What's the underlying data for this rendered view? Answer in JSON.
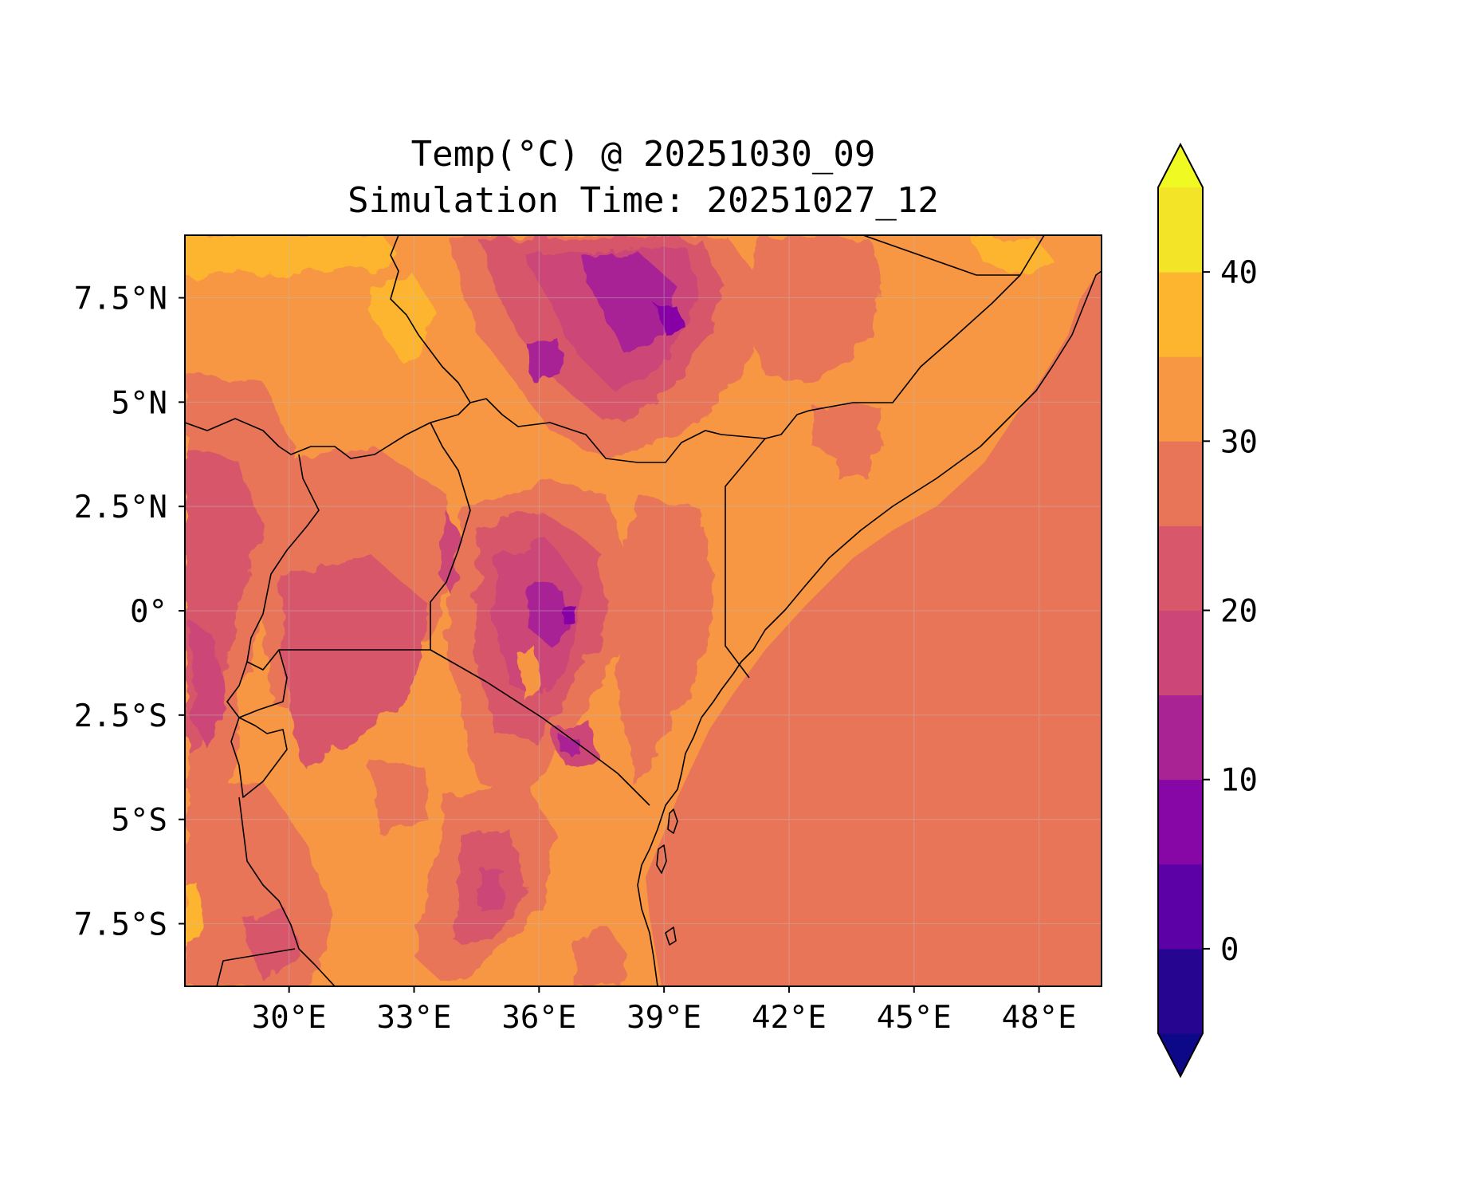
{
  "figure": {
    "title_line1": "Temp(°C) @ 20251030_09",
    "title_line2": "Simulation Time: 20251027_12"
  },
  "map": {
    "lon_range": [
      27.5,
      49.5
    ],
    "lat_range": [
      -9,
      9
    ],
    "lon_ticks": [
      {
        "value": 30,
        "label": "30°E"
      },
      {
        "value": 33,
        "label": "33°E"
      },
      {
        "value": 36,
        "label": "36°E"
      },
      {
        "value": 39,
        "label": "39°E"
      },
      {
        "value": 42,
        "label": "42°E"
      },
      {
        "value": 45,
        "label": "45°E"
      },
      {
        "value": 48,
        "label": "48°E"
      }
    ],
    "lat_ticks": [
      {
        "value": 7.5,
        "label": "7.5°N"
      },
      {
        "value": 5,
        "label": "5°N"
      },
      {
        "value": 2.5,
        "label": "2.5°N"
      },
      {
        "value": 0,
        "label": "0°"
      },
      {
        "value": -2.5,
        "label": "2.5°S"
      },
      {
        "value": -5,
        "label": "5°S"
      },
      {
        "value": -7.5,
        "label": "7.5°S"
      }
    ],
    "ocean_color": "#e97558",
    "land_base_color": "#f79643",
    "border_color": "#000000"
  },
  "colorbar": {
    "extend": "both",
    "levels": [
      -5,
      0,
      5,
      10,
      15,
      20,
      25,
      30,
      35,
      40,
      45
    ],
    "colors": [
      "#260591",
      "#5c01a6",
      "#8606a6",
      "#a92395",
      "#cc4778",
      "#d8576b",
      "#e97558",
      "#f79643",
      "#fdb42f",
      "#f3e427"
    ],
    "under_color": "#0d0887",
    "over_color": "#f0f921",
    "tick_values": [
      0,
      10,
      20,
      30,
      40
    ],
    "tick_labels": [
      "0",
      "10",
      "20",
      "30",
      "40"
    ]
  }
}
